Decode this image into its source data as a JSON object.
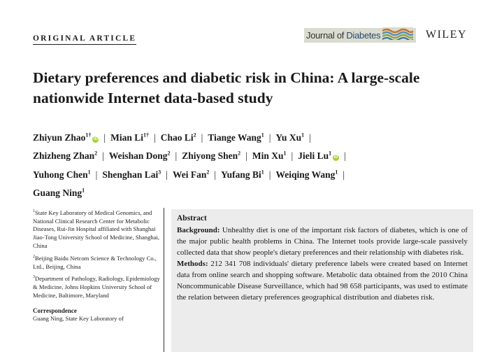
{
  "header": {
    "article_type": "ORIGINAL ARTICLE",
    "journal_prefix": "Journal of ",
    "journal_name": "Diabetes",
    "journal_logo_icon": "journal-wave-logo-icon",
    "publisher": "WILEY"
  },
  "title": "Dietary preferences and diabetic risk in China: A large-scale nationwide Internet data-based study",
  "authors": [
    {
      "name": "Zhiyun Zhao",
      "sup": "1†",
      "orcid": true
    },
    {
      "name": "Mian Li",
      "sup": "1†",
      "orcid": false
    },
    {
      "name": "Chao Li",
      "sup": "2",
      "orcid": false
    },
    {
      "name": "Tiange Wang",
      "sup": "1",
      "orcid": false
    },
    {
      "name": "Yu Xu",
      "sup": "1",
      "orcid": false
    },
    {
      "name": "Zhizheng Zhan",
      "sup": "2",
      "orcid": false
    },
    {
      "name": "Weishan Dong",
      "sup": "2",
      "orcid": false
    },
    {
      "name": "Zhiyong Shen",
      "sup": "2",
      "orcid": false
    },
    {
      "name": "Min Xu",
      "sup": "1",
      "orcid": false
    },
    {
      "name": "Jieli Lu",
      "sup": "1",
      "orcid": true
    },
    {
      "name": "Yuhong Chen",
      "sup": "1",
      "orcid": false
    },
    {
      "name": "Shenghan Lai",
      "sup": "3",
      "orcid": false
    },
    {
      "name": "Wei Fan",
      "sup": "2",
      "orcid": false
    },
    {
      "name": "Yufang Bi",
      "sup": "1",
      "orcid": false
    },
    {
      "name": "Weiqing Wang",
      "sup": "1",
      "orcid": false
    },
    {
      "name": "Guang Ning",
      "sup": "1",
      "orcid": false
    }
  ],
  "author_lines": [
    [
      0,
      1,
      2,
      3,
      4
    ],
    [
      5,
      6,
      7,
      8,
      9
    ],
    [
      10,
      11,
      12,
      13,
      14
    ],
    [
      15
    ]
  ],
  "affiliations": [
    {
      "sup": "1",
      "text": "State Key Laboratory of Medical Genomics, and National Clinical Research Center for Metabolic Diseases, Rui-Jin Hospital affiliated with Shanghai Jiao-Tong University School of Medicine, Shanghai, China"
    },
    {
      "sup": "2",
      "text": "Beijing Baidu Netcom Science & Technology Co., Ltd., Beijing, China"
    },
    {
      "sup": "3",
      "text": "Department of Pathology, Radiology, Epidemiology & Medicine, Johns Hopkins University School of Medicine, Baltimore, Maryland"
    }
  ],
  "correspondence": {
    "heading": "Correspondence",
    "text": "Guang Ning, State Key Laboratory of"
  },
  "abstract": {
    "heading": "Abstract",
    "background_label": "Background:",
    "background_text": " Unhealthy diet is one of the important risk factors of diabetes, which is one of the major public health problems in China. The Internet tools provide large-scale passively collected data that show people's dietary preferences and their relationship with diabetes risk.",
    "methods_label": "Methods:",
    "methods_text": " 212 341 708 individuals' dietary preference labels were created based on Internet data from online search and shopping software. Metabolic data obtained from the 2010 China Noncommunicable Disease Surveillance, which had 98 658 participants, was used to estimate the relation between dietary preferences geographical distribution and diabetes risk."
  },
  "separator": "|"
}
